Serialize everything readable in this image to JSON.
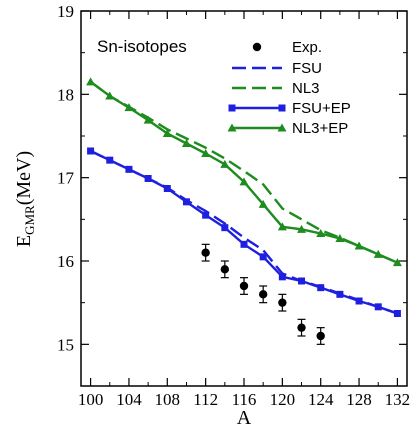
{
  "chart_data": {
    "type": "line",
    "annotation": "Sn-isotopes",
    "xlabel": "A",
    "ylabel_main": "E",
    "ylabel_sub": "GMR",
    "ylabel_unit": "(MeV)",
    "xlim": [
      99,
      133
    ],
    "ylim": [
      14.5,
      19
    ],
    "x_ticks": [
      "100",
      "104",
      "108",
      "112",
      "116",
      "120",
      "124",
      "128",
      "132"
    ],
    "y_ticks": [
      "15",
      "16",
      "17",
      "18",
      "19"
    ],
    "legend_placement": "top-right",
    "series": [
      {
        "name": "Exp.",
        "kind": "errorbar",
        "color": "#000000",
        "x": [
          112,
          114,
          116,
          118,
          120,
          122,
          124
        ],
        "y": [
          16.1,
          15.9,
          15.7,
          15.6,
          15.5,
          15.2,
          15.1
        ],
        "err": [
          0.1,
          0.1,
          0.1,
          0.1,
          0.1,
          0.1,
          0.1
        ]
      },
      {
        "name": "FSU",
        "kind": "dashed",
        "color": "#1f1fe0",
        "x": [
          100,
          102,
          104,
          106,
          108,
          110,
          112,
          114,
          116,
          118,
          120,
          122,
          124,
          126,
          128,
          130,
          132
        ],
        "y": [
          17.32,
          17.21,
          17.1,
          16.99,
          16.88,
          16.73,
          16.6,
          16.45,
          16.28,
          16.13,
          15.85,
          15.76,
          15.69,
          15.61,
          15.53,
          15.45,
          15.37
        ]
      },
      {
        "name": "NL3",
        "kind": "dashed",
        "color": "#1f8c1f",
        "x": [
          100,
          102,
          104,
          106,
          108,
          110,
          112,
          114,
          116,
          118,
          120,
          122,
          124,
          126,
          128,
          130,
          132
        ],
        "y": [
          18.15,
          17.98,
          17.85,
          17.72,
          17.58,
          17.47,
          17.36,
          17.23,
          17.08,
          16.92,
          16.63,
          16.5,
          16.37,
          16.28,
          16.18,
          16.08,
          15.98
        ]
      },
      {
        "name": "FSU+EP",
        "kind": "line-square",
        "color": "#1f1fe0",
        "x": [
          100,
          102,
          104,
          106,
          108,
          110,
          112,
          114,
          116,
          118,
          120,
          122,
          124,
          126,
          128,
          130,
          132
        ],
        "y": [
          17.32,
          17.21,
          17.1,
          16.99,
          16.87,
          16.71,
          16.55,
          16.4,
          16.2,
          16.05,
          15.81,
          15.76,
          15.68,
          15.6,
          15.52,
          15.45,
          15.37
        ]
      },
      {
        "name": "NL3+EP",
        "kind": "line-triangle",
        "color": "#1f8c1f",
        "x": [
          100,
          102,
          104,
          106,
          108,
          110,
          112,
          114,
          116,
          118,
          120,
          122,
          124,
          126,
          128,
          130,
          132
        ],
        "y": [
          18.15,
          17.98,
          17.84,
          17.69,
          17.53,
          17.41,
          17.29,
          17.16,
          16.95,
          16.68,
          16.41,
          16.38,
          16.33,
          16.27,
          16.18,
          16.08,
          15.98
        ]
      }
    ]
  }
}
